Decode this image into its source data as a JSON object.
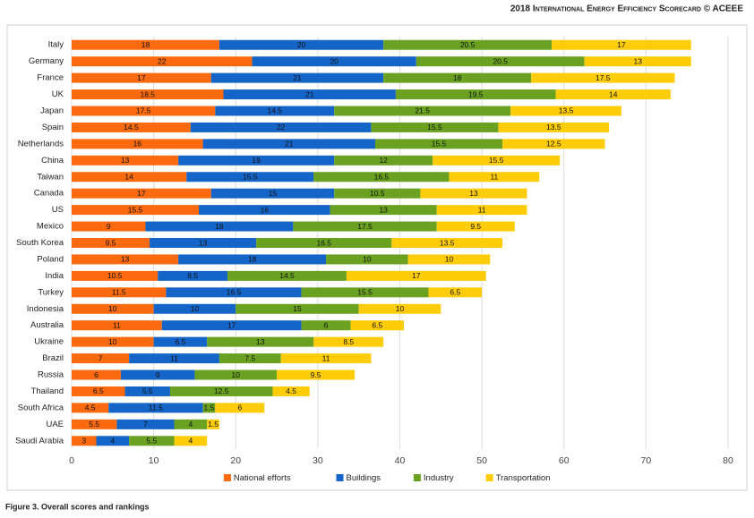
{
  "header": "2018 International Energy Efficiency Scorecard © ACEEE",
  "caption": "Figure 3. Overall scores and rankings",
  "chart_data": {
    "type": "stacked-barh",
    "categories": [
      "Italy",
      "Germany",
      "France",
      "UK",
      "Japan",
      "Spain",
      "Netherlands",
      "China",
      "Taiwan",
      "Canada",
      "US",
      "Mexico",
      "South Korea",
      "Poland",
      "India",
      "Turkey",
      "Indonesia",
      "Australia",
      "Ukraine",
      "Brazil",
      "Russia",
      "Thailand",
      "South Africa",
      "UAE",
      "Saudi Arabia"
    ],
    "series": [
      {
        "name": "National efforts",
        "color": "#fb6a0f",
        "values": [
          18,
          22,
          17,
          18.5,
          17.5,
          14.5,
          16,
          13,
          14,
          17,
          15.5,
          9,
          9.5,
          13,
          10.5,
          11.5,
          10,
          11,
          10,
          7,
          6,
          6.5,
          4.5,
          5.5,
          3
        ]
      },
      {
        "name": "Buildings",
        "color": "#1565c8",
        "values": [
          20,
          20,
          21,
          21,
          14.5,
          22,
          21,
          19,
          15.5,
          15,
          16,
          18,
          13,
          18,
          8.5,
          16.5,
          10,
          17,
          6.5,
          11,
          9,
          5.5,
          11.5,
          7,
          4
        ]
      },
      {
        "name": "Industry",
        "color": "#6aa121",
        "values": [
          20.5,
          20.5,
          18,
          19.5,
          21.5,
          15.5,
          15.5,
          12,
          16.5,
          10.5,
          13,
          17.5,
          16.5,
          10,
          14.5,
          15.5,
          15,
          6,
          13,
          7.5,
          10,
          12.5,
          1.5,
          4,
          5.5
        ]
      },
      {
        "name": "Transportation",
        "color": "#ffcc0a",
        "values": [
          17,
          13,
          17.5,
          14,
          13.5,
          13.5,
          12.5,
          15.5,
          11,
          13,
          11,
          9.5,
          13.5,
          10,
          17,
          6.5,
          10,
          6.5,
          8.5,
          11,
          9.5,
          4.5,
          6,
          1.5,
          4
        ]
      }
    ],
    "xlim": [
      0,
      80
    ],
    "xticks": [
      0,
      10,
      20,
      30,
      40,
      50,
      60,
      70,
      80
    ],
    "grid": true,
    "legend": "bottom"
  }
}
